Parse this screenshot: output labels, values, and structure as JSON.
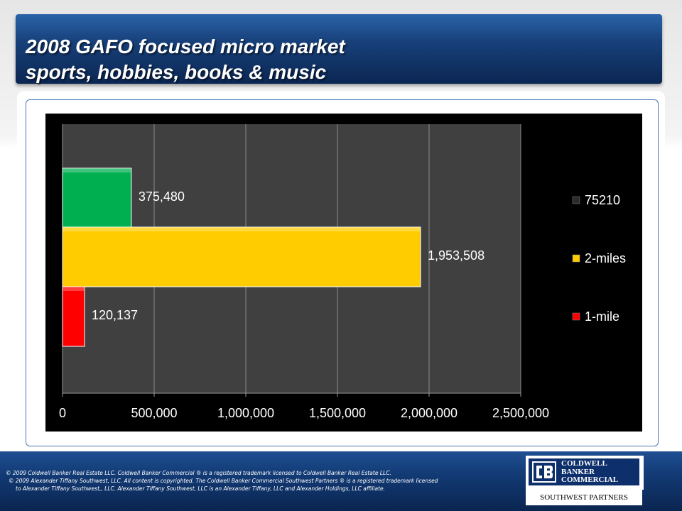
{
  "slide": {
    "title_line1": "2008 GAFO focused micro market",
    "title_line2": "sports, hobbies, books & music"
  },
  "chart_data": {
    "type": "bar",
    "orientation": "horizontal",
    "title": "",
    "xlabel": "",
    "ylabel": "",
    "xlim": [
      0,
      2500000
    ],
    "x_ticks": [
      "0",
      "500,000",
      "1,000,000",
      "1,500,000",
      "2,000,000",
      "2,500,000"
    ],
    "x_tick_values": [
      0,
      500000,
      1000000,
      1500000,
      2000000,
      2500000
    ],
    "grid": true,
    "legend_position": "right",
    "series": [
      {
        "name": "75210",
        "value": 375480,
        "label": "375,480",
        "color": "#00b050",
        "legend_color": "#2b2b2b"
      },
      {
        "name": "2-miles",
        "value": 1953508,
        "label": "1,953,508",
        "color": "#ffcc00",
        "legend_color": "#ffcc00"
      },
      {
        "name": "1-mile",
        "value": 120137,
        "label": "120,137",
        "color": "#ff0000",
        "legend_color": "#ff0000"
      }
    ]
  },
  "footer": {
    "legal_line1": "©  2009 Coldwell Banker Real Estate LLC. Coldwell Banker Commercial ® is a registered trademark licensed to Coldwell Banker Real Estate LLC.",
    "legal_line2": "© 2009  Alexander Tiffany Southwest, LLC. All content is copyrighted. The Coldwell Banker Commercial Southwest Partners ® is a registered trademark licensed",
    "legal_line3": "to Alexander Tiffany Southwest,, LLC.  Alexander Tiffany Southwest, LLC is an Alexander Tiffany, LLC and Alexander Holdings, LLC affiliate.",
    "logo_mark": "CB",
    "logo_word1": "COLDWELL",
    "logo_word2": "BANKER",
    "logo_word3": "COMMERCIAL",
    "logo_sub": "SOUTHWEST PARTNERS"
  }
}
